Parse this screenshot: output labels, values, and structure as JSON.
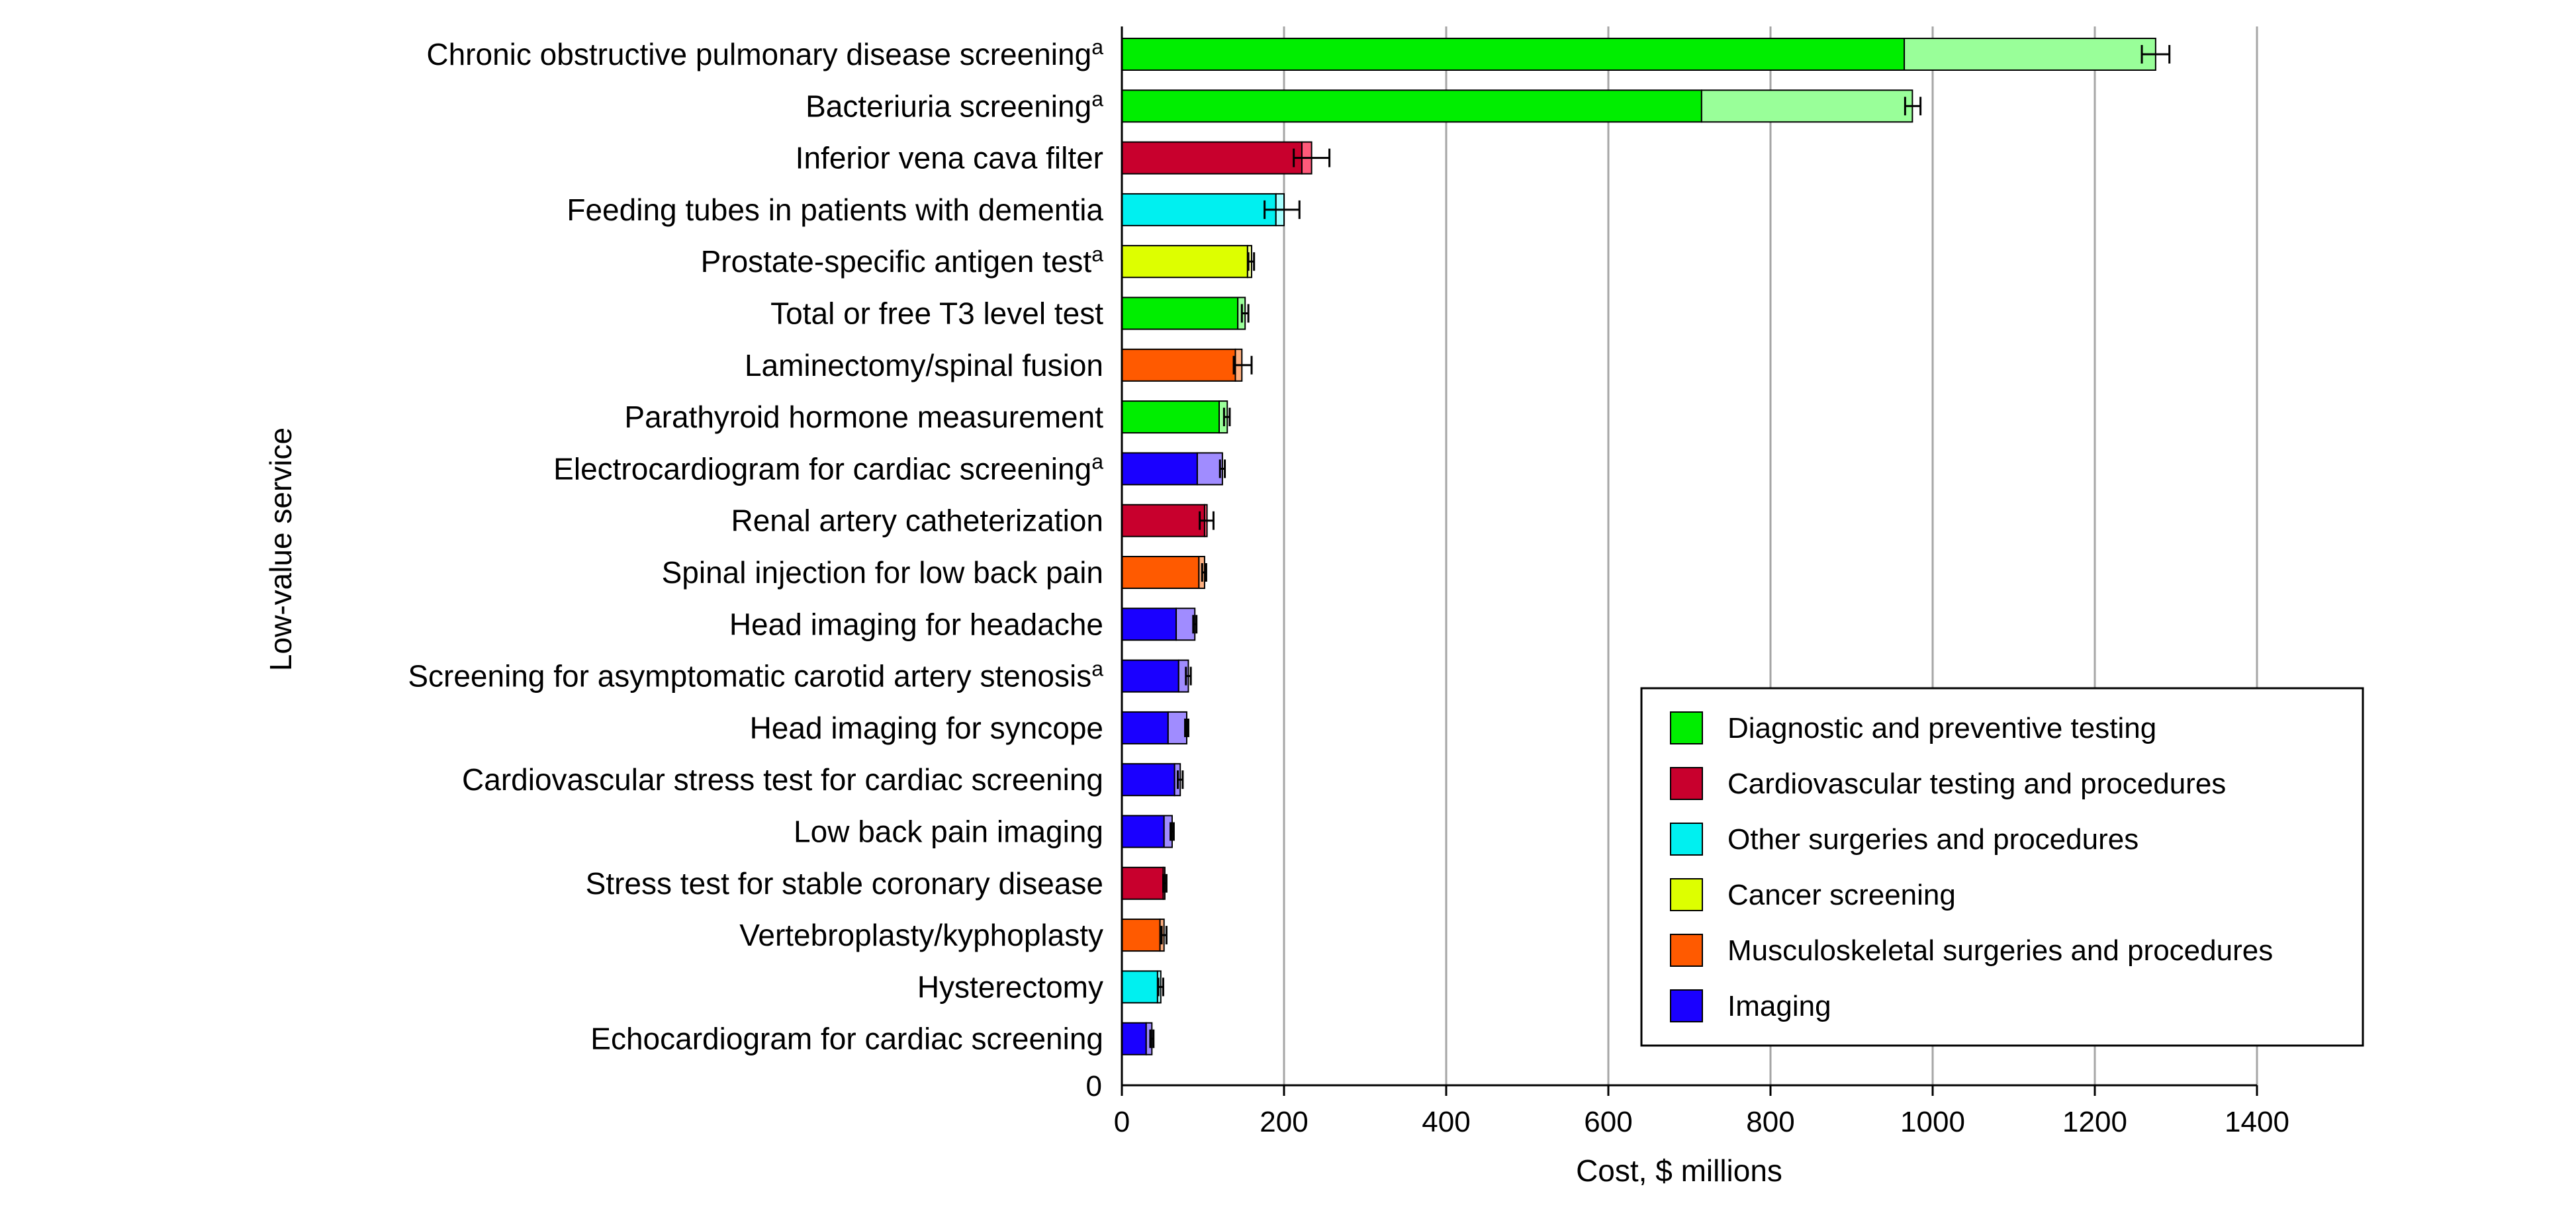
{
  "chart_data": {
    "type": "bar",
    "orientation": "horizontal",
    "stacked": true,
    "title": "",
    "xlabel": "Cost, $ millions",
    "ylabel": "Low-value service",
    "xlim": [
      0,
      1400
    ],
    "xticks": [
      "0",
      "200",
      "400",
      "600",
      "800",
      "1000",
      "1200",
      "1400"
    ],
    "y_origin_label": "0",
    "grid": "vertical",
    "legend_position": "bottom-right",
    "legend": [
      {
        "key": "diag",
        "label": "Diagnostic and preventive testing",
        "color": "#00ee00",
        "light": "#99ff99"
      },
      {
        "key": "cardio",
        "label": "Cardiovascular testing and procedures",
        "color": "#c8002d",
        "light": "#ff5a7a"
      },
      {
        "key": "other",
        "label": "Other surgeries and procedures",
        "color": "#00f0f0",
        "light": "#a8ffff"
      },
      {
        "key": "cancer",
        "label": "Cancer screening",
        "color": "#ddff00",
        "light": "#f2ff99"
      },
      {
        "key": "msk",
        "label": "Musculoskeletal surgeries and procedures",
        "color": "#ff5a00",
        "light": "#ffb080"
      },
      {
        "key": "imaging",
        "label": "Imaging",
        "color": "#1a00ff",
        "light": "#a08cff"
      }
    ],
    "services": [
      {
        "label": "Chronic obstructive pulmonary disease screening",
        "sup": "a",
        "category": "diag",
        "base": 965,
        "total": 1275,
        "err": [
          1258,
          1292
        ]
      },
      {
        "label": "Bacteriuria screening",
        "sup": "a",
        "category": "diag",
        "base": 715,
        "total": 975,
        "err": [
          966,
          985
        ]
      },
      {
        "label": "Inferior vena cava filter",
        "sup": "",
        "category": "cardio",
        "base": 222,
        "total": 234,
        "err": [
          212,
          256
        ]
      },
      {
        "label": "Feeding tubes in patients with dementia",
        "sup": "",
        "category": "other",
        "base": 190,
        "total": 200,
        "err": [
          176,
          219
        ]
      },
      {
        "label": "Prostate-specific antigen test",
        "sup": "a",
        "category": "cancer",
        "base": 155,
        "total": 160,
        "err": [
          156,
          163
        ]
      },
      {
        "label": "Total or free T3 level test",
        "sup": "",
        "category": "diag",
        "base": 143,
        "total": 152,
        "err": [
          148,
          156
        ]
      },
      {
        "label": "Laminectomy/spinal fusion",
        "sup": "",
        "category": "msk",
        "base": 140,
        "total": 148,
        "err": [
          138,
          160
        ]
      },
      {
        "label": "Parathyroid hormone measurement",
        "sup": "",
        "category": "diag",
        "base": 120,
        "total": 130,
        "err": [
          126,
          133
        ]
      },
      {
        "label": "Electrocardiogram for cardiac screening",
        "sup": "a",
        "category": "imaging",
        "base": 93,
        "total": 124,
        "err": [
          121,
          127
        ]
      },
      {
        "label": "Renal artery catheterization",
        "sup": "",
        "category": "cardio",
        "base": 102,
        "total": 105,
        "err": [
          96,
          113
        ]
      },
      {
        "label": "Spinal injection for low back pain",
        "sup": "",
        "category": "msk",
        "base": 95,
        "total": 102,
        "err": [
          99,
          104
        ]
      },
      {
        "label": "Head imaging for headache",
        "sup": "",
        "category": "imaging",
        "base": 67,
        "total": 90,
        "err": [
          88,
          92
        ]
      },
      {
        "label": "Screening for asymptomatic carotid artery stenosis",
        "sup": "a",
        "category": "imaging",
        "base": 70,
        "total": 82,
        "err": [
          79,
          85
        ]
      },
      {
        "label": "Head imaging for syncope",
        "sup": "",
        "category": "imaging",
        "base": 57,
        "total": 80,
        "err": [
          78,
          82
        ]
      },
      {
        "label": "Cardiovascular stress test for cardiac screening",
        "sup": "",
        "category": "imaging",
        "base": 65,
        "total": 72,
        "err": [
          69,
          75
        ]
      },
      {
        "label": "Low back pain imaging",
        "sup": "",
        "category": "imaging",
        "base": 52,
        "total": 62,
        "err": [
          60,
          64
        ]
      },
      {
        "label": "Stress test for stable coronary disease",
        "sup": "",
        "category": "cardio",
        "base": 51,
        "total": 53,
        "err": [
          51,
          55
        ]
      },
      {
        "label": "Vertebroplasty/kyphoplasty",
        "sup": "",
        "category": "msk",
        "base": 47,
        "total": 52,
        "err": [
          49,
          55
        ]
      },
      {
        "label": "Hysterectomy",
        "sup": "",
        "category": "other",
        "base": 44,
        "total": 48,
        "err": [
          45,
          51
        ]
      },
      {
        "label": "Echocardiogram for cardiac screening",
        "sup": "",
        "category": "imaging",
        "base": 30,
        "total": 37,
        "err": [
          35,
          39
        ]
      }
    ]
  }
}
